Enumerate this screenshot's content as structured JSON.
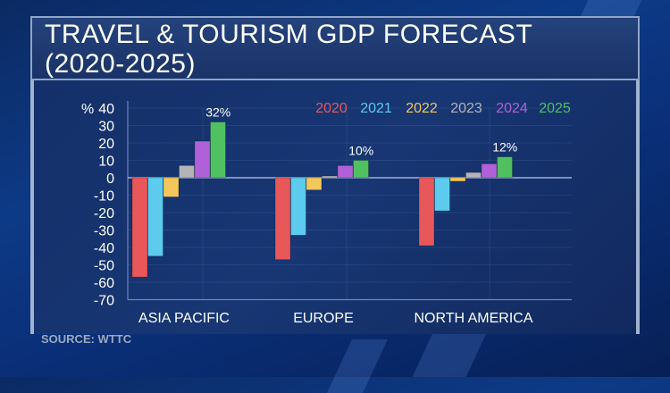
{
  "title": {
    "line1": "TRAVEL & TOURISM GDP FORECAST",
    "line2": "(2020-2025)"
  },
  "source": "SOURCE: WTTC",
  "chart_data": {
    "type": "bar",
    "title": "TRAVEL & TOURISM GDP FORECAST (2020-2025)",
    "ylabel": "%",
    "ylim": [
      -70,
      40
    ],
    "yticks": [
      "40",
      "30",
      "20",
      "10",
      "0",
      "-10",
      "-20",
      "-30",
      "-40",
      "-50",
      "-60",
      "-70"
    ],
    "ytick_values": [
      40,
      30,
      20,
      10,
      0,
      -10,
      -20,
      -30,
      -40,
      -50,
      -60,
      -70
    ],
    "legend_position": "top-right",
    "categories": [
      "ASIA PACIFIC",
      "EUROPE",
      "NORTH AMERICA"
    ],
    "series": [
      {
        "name": "2020",
        "color": "#e8575a",
        "values": [
          -57,
          -47,
          -39
        ]
      },
      {
        "name": "2021",
        "color": "#5ccbee",
        "values": [
          -45,
          -33,
          -19
        ]
      },
      {
        "name": "2022",
        "color": "#f2c75c",
        "values": [
          -11,
          -7,
          -2
        ]
      },
      {
        "name": "2023",
        "color": "#b4b4b8",
        "values": [
          7,
          1,
          3
        ]
      },
      {
        "name": "2024",
        "color": "#b061d9",
        "values": [
          21,
          7,
          8
        ]
      },
      {
        "name": "2025",
        "color": "#4fc160",
        "values": [
          32,
          10,
          12
        ]
      }
    ],
    "data_labels": [
      "32%",
      "10%",
      "12%"
    ]
  }
}
